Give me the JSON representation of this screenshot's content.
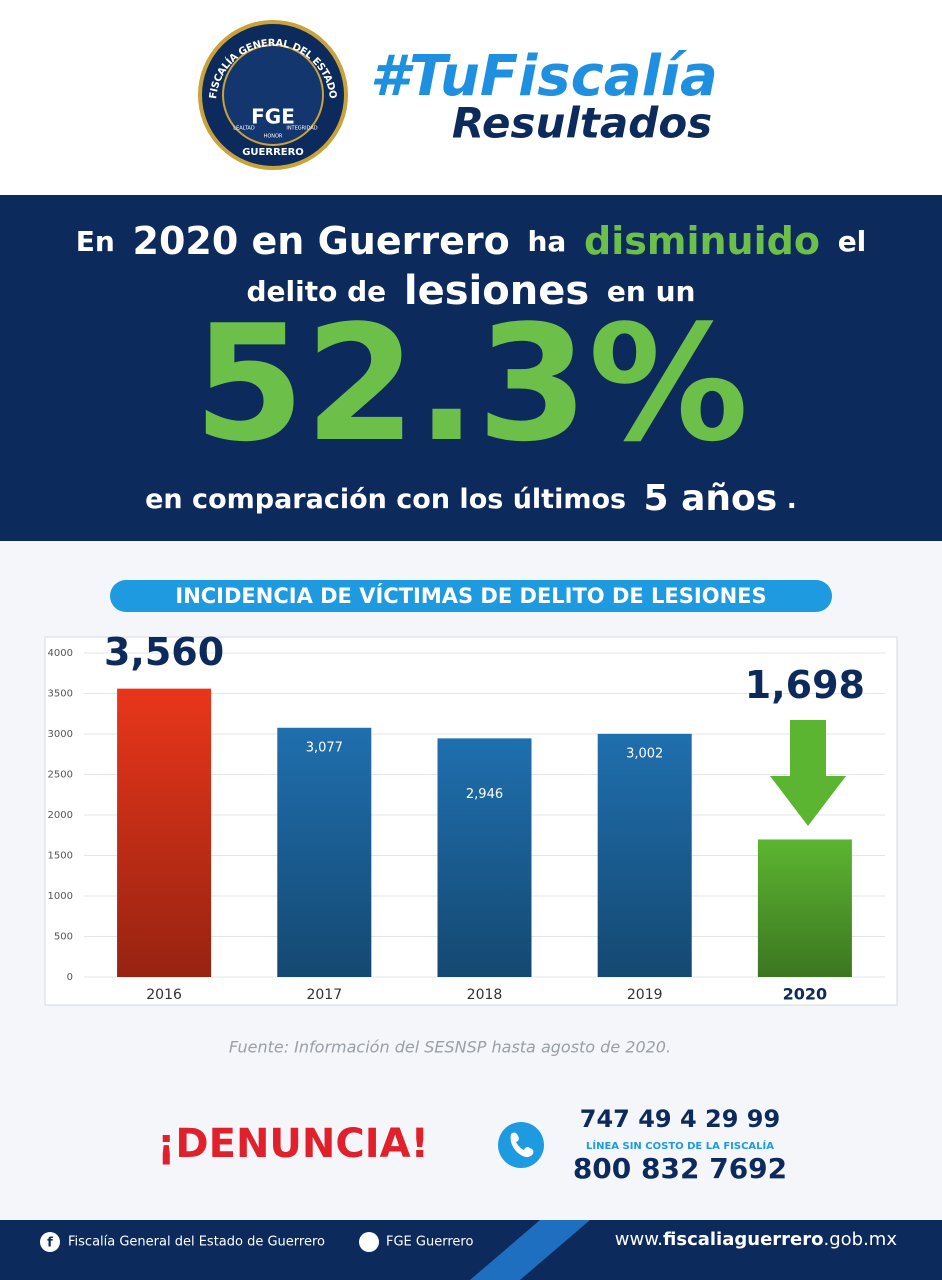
{
  "header": {
    "logo_top": "FISCALÍA GENERAL DEL ESTADO",
    "logo_center": "FGE",
    "logo_bottom": "GUERRERO",
    "logo_motto": [
      "LEALTAD",
      "HONOR",
      "INTEGRIDAD"
    ],
    "hashtag": "#TuFiscalía",
    "subtitle": "Resultados"
  },
  "banner": {
    "line1": [
      "En",
      "2020 en Guerrero",
      "ha",
      "disminuido",
      "el"
    ],
    "line2": [
      "delito de",
      "lesiones",
      "en un"
    ],
    "figure": "52.3%",
    "line3": [
      "en comparación con los últimos",
      "5 años",
      "."
    ]
  },
  "chart_data": {
    "type": "bar",
    "title": "INCIDENCIA DE VÍCTIMAS DE DELITO DE LESIONES",
    "categories": [
      "2016",
      "2017",
      "2018",
      "2019",
      "2020"
    ],
    "values": [
      3560,
      3077,
      2946,
      3002,
      1698
    ],
    "value_labels": [
      "3,560",
      "3,077",
      "2,946",
      "3,002",
      "1,698"
    ],
    "colors": [
      "#e8361a",
      "#1f6fae",
      "#1f6fae",
      "#1f6fae",
      "#5cb531"
    ],
    "ylim": [
      0,
      4000
    ],
    "yticks": [
      0,
      500,
      1000,
      1500,
      2000,
      2500,
      3000,
      3500,
      4000
    ],
    "grid": true
  },
  "source": "Fuente: Información del SESNSP hasta agosto de 2020.",
  "contact": {
    "call": "¡DENUNCIA!",
    "phone1": "747 49 4 29 99",
    "note": "LÍNEA SIN COSTO DE LA FISCALÍA",
    "phone2": "800 832 7692"
  },
  "footer": {
    "facebook": "Fiscalía General del Estado de Guerrero",
    "twitter": "FGE Guerrero",
    "web": [
      "www.",
      "fiscaliaguerrero",
      ".gob.mx"
    ]
  }
}
